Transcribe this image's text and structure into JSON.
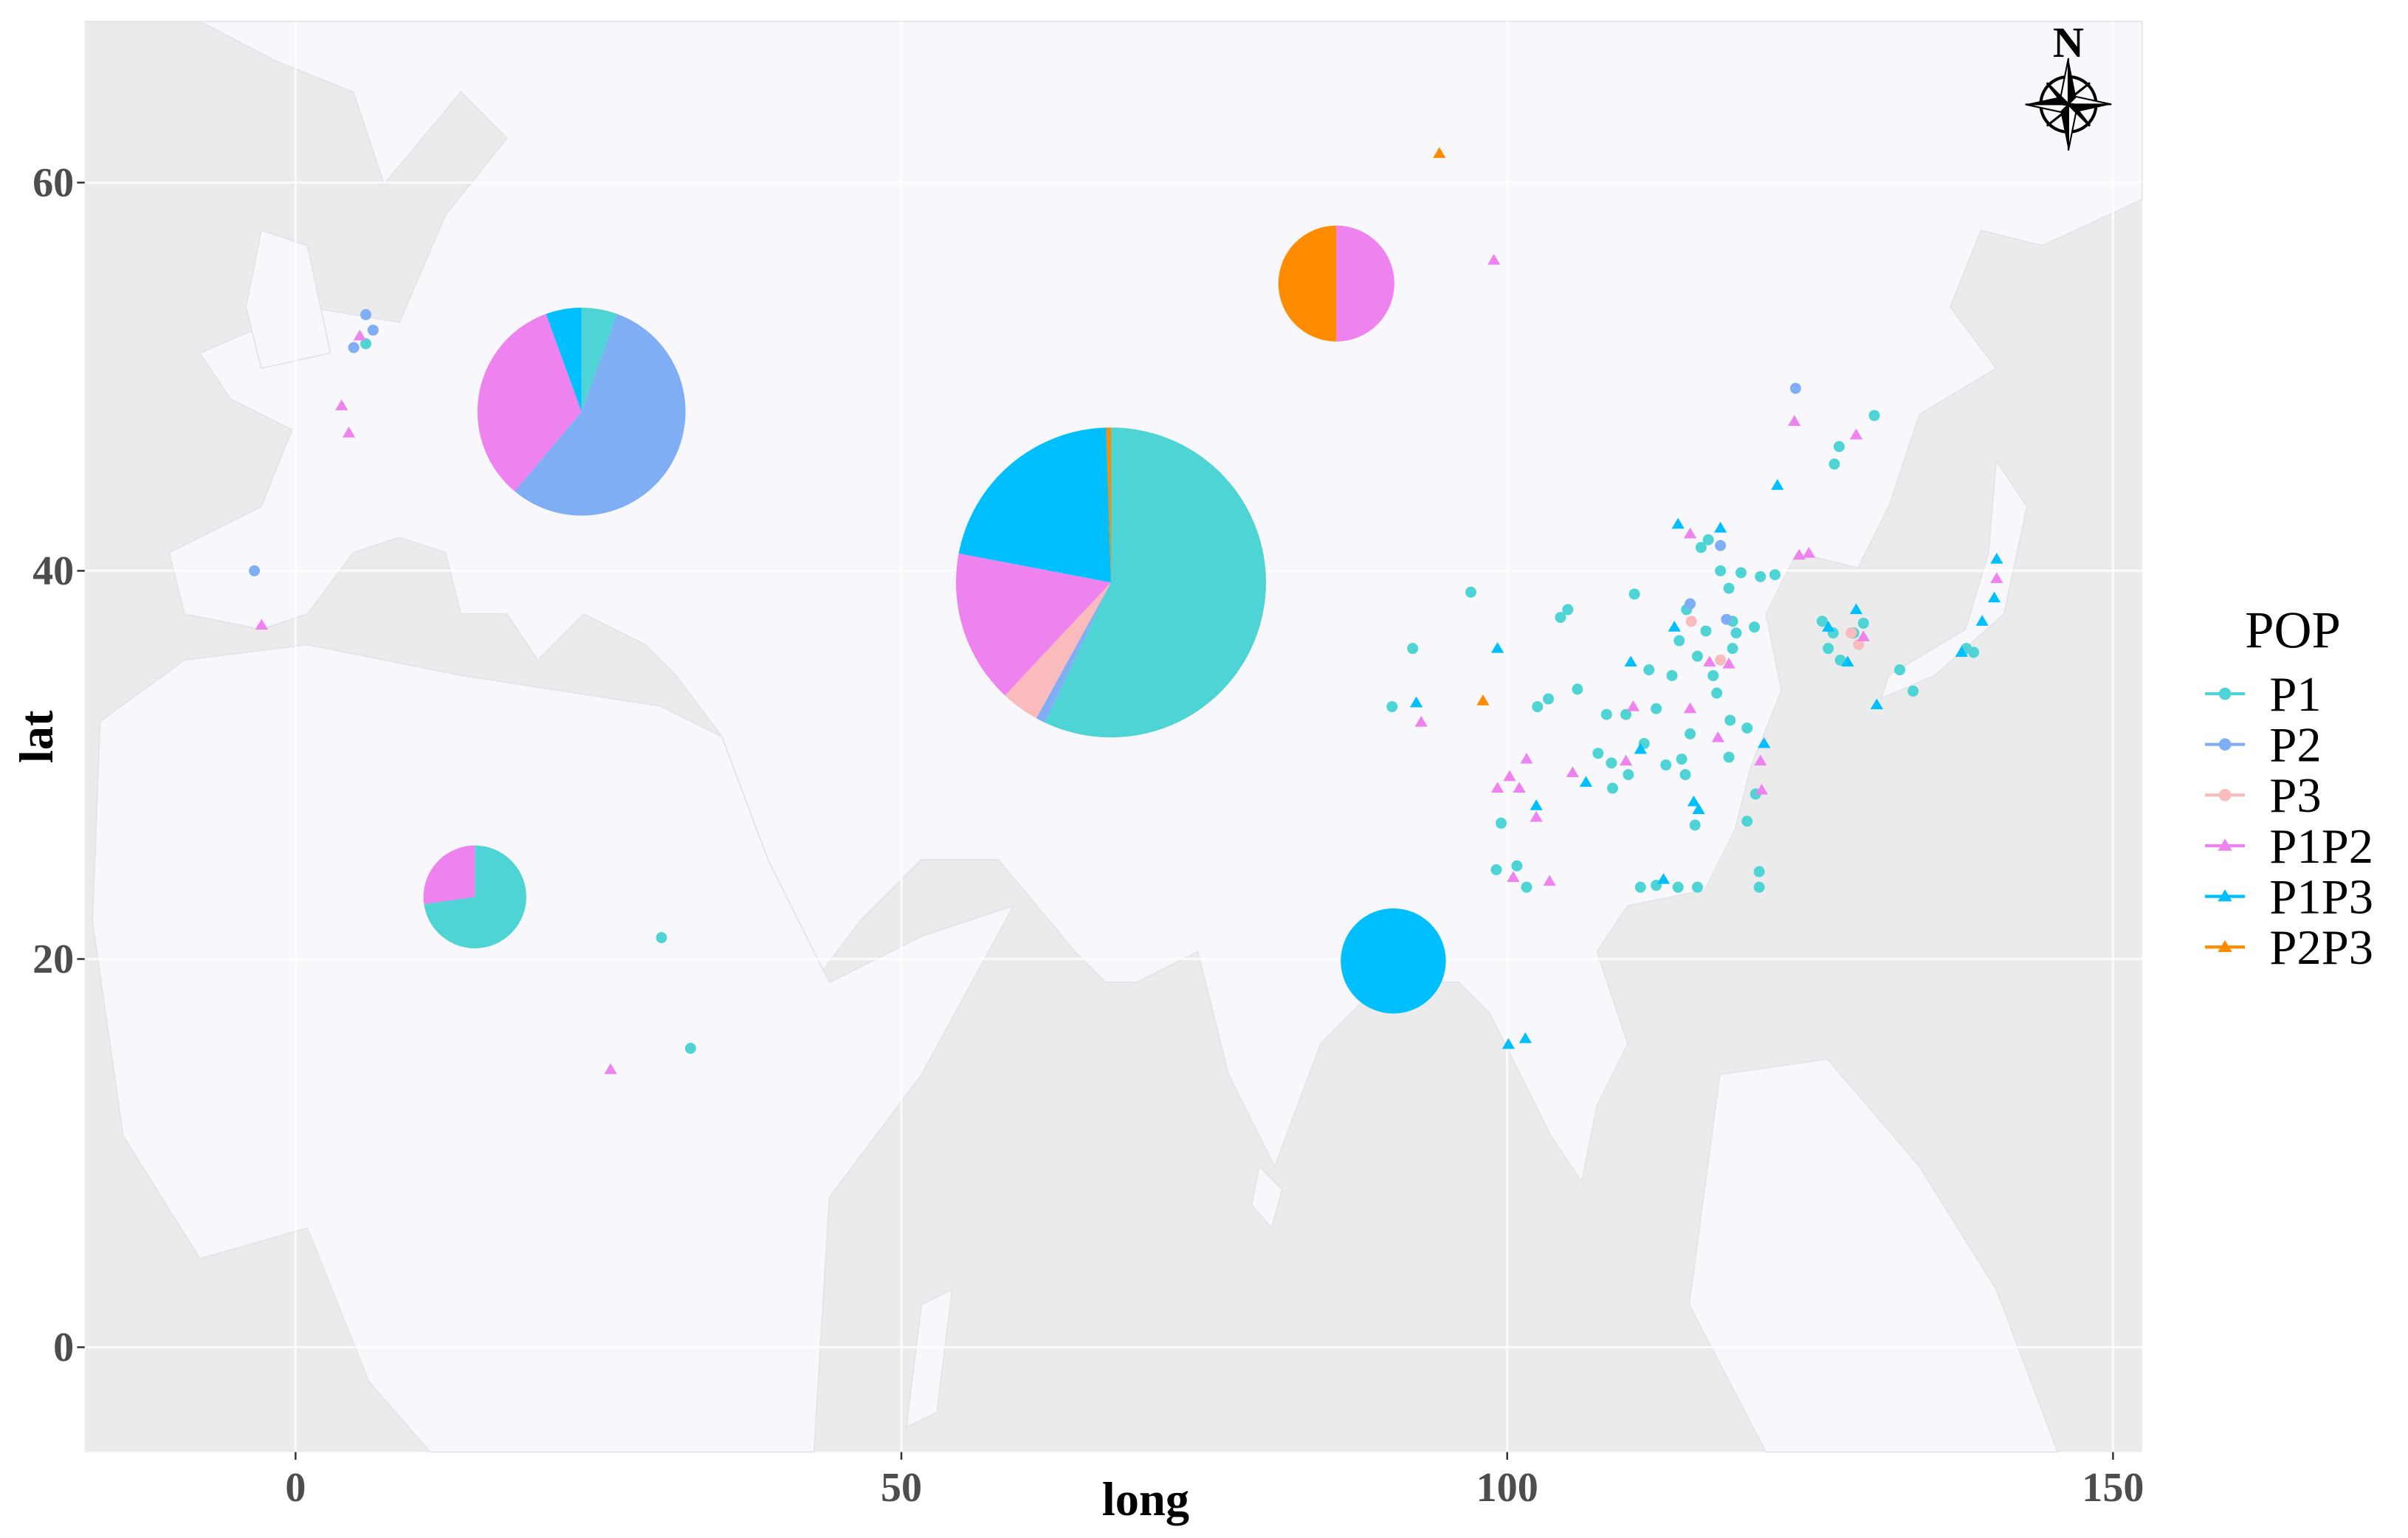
{
  "chart_data": {
    "type": "map",
    "x_label": "long",
    "y_label": "lat",
    "legend_title": "POP",
    "compass_label": "N",
    "xlim": [
      -17.4,
      152.4
    ],
    "ylim": [
      -5.4,
      68.3
    ],
    "xticks": [
      0,
      50,
      100,
      150
    ],
    "yticks": [
      0,
      20,
      40,
      60
    ],
    "grid": true,
    "legend_position": "right",
    "series": [
      {
        "name": "P1",
        "color": "#4ed4d4",
        "shape": "circle",
        "x": [
          5.8,
          30.2,
          32.6,
          97.0,
          92.2,
          90.5,
          105.0,
          104.4,
          105.8,
          102.5,
          103.4,
          99.5,
          99.1,
          100.8,
          101.6,
          110.5,
          108.2,
          109.8,
          108.6,
          108.7,
          111.3,
          112.3,
          113.6,
          114.2,
          116.0,
          116.6,
          117.6,
          118.3,
          119.3,
          122.1,
          120.9,
          114.8,
          116.4,
          118.6,
          118.9,
          120.4,
          115.7,
          117.3,
          118.4,
          119.8,
          115.1,
          113.1,
          114.4,
          114.7,
          110.0,
          115.5,
          118.3,
          120.5,
          119.8,
          111.0,
          112.3,
          114.1,
          115.7,
          120.8,
          120.8,
          127.0,
          127.4,
          130.3,
          126.0,
          126.5,
          126.9,
          129.4,
          127.5,
          128.6,
          132.4,
          133.5,
          137.9,
          138.5,
          118.6,
          117.0,
          107.5,
          111.7
        ],
        "y": [
          51.7,
          21.1,
          15.4,
          38.9,
          36.0,
          33.0,
          38.0,
          37.6,
          33.9,
          33.0,
          33.4,
          27.0,
          24.6,
          24.8,
          23.7,
          38.8,
          32.6,
          32.6,
          30.1,
          28.8,
          31.1,
          32.9,
          34.6,
          36.4,
          41.2,
          41.6,
          40.0,
          39.1,
          39.9,
          39.8,
          39.7,
          38.0,
          36.9,
          37.4,
          36.8,
          37.1,
          35.6,
          33.7,
          32.3,
          31.9,
          31.6,
          30.0,
          30.3,
          29.5,
          29.5,
          26.9,
          30.4,
          28.5,
          27.1,
          23.7,
          23.8,
          23.7,
          23.7,
          24.5,
          23.7,
          45.5,
          46.4,
          48.0,
          37.4,
          36.0,
          36.8,
          37.3,
          35.4,
          36.8,
          34.9,
          33.8,
          36.0,
          35.8,
          36.0,
          34.6,
          30.6,
          34.9
        ]
      },
      {
        "name": "P2",
        "color": "#7faef5",
        "shape": "circle",
        "x": [
          5.8,
          6.4,
          4.8,
          -3.4,
          123.8,
          117.6,
          115.1,
          118.1,
          128.4
        ],
        "y": [
          53.2,
          52.4,
          51.5,
          40.0,
          49.4,
          41.3,
          38.3,
          37.5,
          36.8
        ]
      },
      {
        "name": "P3",
        "color": "#f9bbbb",
        "shape": "circle",
        "x": [
          115.2,
          128.4,
          117.6,
          129.0
        ],
        "y": [
          37.4,
          36.8,
          35.4,
          36.2
        ]
      },
      {
        "name": "P1P2",
        "color": "#ee82ee",
        "shape": "triangle",
        "x": [
          5.3,
          3.8,
          4.4,
          -2.8,
          26.0,
          98.9,
          92.9,
          123.7,
          128.8,
          124.1,
          124.9,
          115.1,
          99.2,
          100.2,
          101.6,
          101.0,
          102.4,
          100.5,
          103.5,
          105.4,
          109.8,
          110.4,
          115.1,
          116.7,
          118.3,
          117.4,
          120.9,
          121.0,
          140.4,
          129.4
        ],
        "y": [
          52.1,
          48.5,
          47.1,
          37.2,
          14.3,
          56.0,
          32.2,
          47.7,
          47.0,
          40.8,
          40.9,
          41.9,
          28.8,
          29.4,
          30.3,
          28.8,
          27.3,
          24.2,
          24.0,
          29.6,
          30.2,
          33.0,
          32.9,
          35.3,
          35.2,
          31.4,
          30.2,
          28.7,
          39.6,
          36.6
        ]
      },
      {
        "name": "P1P3",
        "color": "#00bfff",
        "shape": "triangle",
        "x": [
          99.2,
          92.5,
          100.1,
          101.5,
          102.4,
          106.5,
          110.2,
          111.0,
          113.8,
          114.1,
          117.6,
          122.3,
          115.4,
          115.8,
          112.9,
          121.2,
          128.8,
          130.5,
          139.2,
          140.4,
          140.2,
          137.5,
          128.1,
          126.5
        ],
        "y": [
          36.0,
          33.2,
          15.6,
          15.9,
          27.9,
          29.1,
          35.3,
          30.8,
          37.1,
          42.4,
          42.2,
          44.4,
          28.1,
          27.7,
          24.1,
          31.1,
          38.0,
          33.1,
          37.4,
          40.6,
          38.6,
          35.8,
          35.3,
          37.1
        ]
      },
      {
        "name": "P2P3",
        "color": "#ff8c00",
        "shape": "triangle",
        "x": [
          94.4,
          98.0
        ],
        "y": [
          61.5,
          33.3
        ]
      }
    ],
    "pies": [
      {
        "lon": 67.3,
        "lat": 39.4,
        "values": [
          114,
          2,
          8,
          32,
          43,
          1
        ]
      },
      {
        "lon": 23.6,
        "lat": 48.2,
        "values": [
          5,
          50,
          0,
          30,
          5,
          0
        ]
      },
      {
        "lon": 85.9,
        "lat": 54.8,
        "values": [
          0,
          0,
          0,
          14,
          0,
          14
        ]
      },
      {
        "lon": 14.8,
        "lat": 23.2,
        "values": [
          16,
          0,
          0,
          6,
          0,
          0
        ]
      },
      {
        "lon": 90.6,
        "lat": 19.9,
        "values": [
          0,
          0,
          0,
          0,
          23,
          0
        ]
      }
    ]
  }
}
